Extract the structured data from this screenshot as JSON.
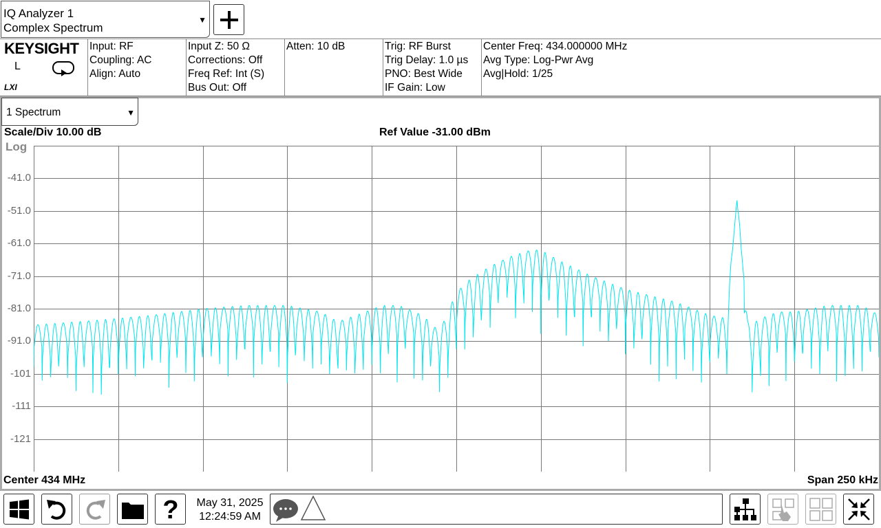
{
  "analyzer": {
    "line1": "IQ Analyzer 1",
    "line2": "Complex Spectrum"
  },
  "brand": {
    "logo": "KEYSIGHT",
    "mode": "L",
    "lxi": "LXI"
  },
  "info": {
    "col1": [
      "Input: RF",
      "Coupling: AC",
      "Align: Auto"
    ],
    "col2": [
      "Input Z: 50 Ω",
      "Corrections: Off",
      "Freq Ref: Int (S)",
      "Bus Out: Off"
    ],
    "col3": [
      "Atten: 10 dB"
    ],
    "col4": [
      "Trig: RF Burst",
      "Trig Delay: 1.0 µs",
      "PNO: Best Wide",
      "IF Gain: Low"
    ],
    "col5": [
      "Center Freq: 434.000000 MHz",
      "Avg Type: Log-Pwr Avg",
      "Avg|Hold: 1/25"
    ]
  },
  "window": {
    "selected": "1 Spectrum"
  },
  "plot": {
    "scale": "Scale/Div 10.00 dB",
    "ref": "Ref Value -31.00 dBm",
    "log": "Log",
    "center": "Center 434 MHz",
    "span": "Span 250 kHz"
  },
  "chart_data": {
    "type": "line",
    "y_tick_labels": [
      "-41.0",
      "-51.0",
      "-61.0",
      "-71.0",
      "-81.0",
      "-91.0",
      "-101",
      "-111",
      "-121"
    ],
    "ylim": [
      -131,
      -31
    ],
    "x_range_khz": [
      -125,
      125
    ],
    "grid": true,
    "trace_color": "#00e5ee",
    "envelope": {
      "x_khz": [
        -125,
        -112,
        -100,
        -90,
        -75,
        -62,
        -50,
        -40,
        -35,
        -27,
        -22,
        -17,
        -10,
        -5,
        0,
        4,
        10,
        16,
        22,
        25,
        30,
        40,
        50,
        65,
        75,
        80,
        83,
        85,
        87,
        90,
        95,
        100,
        110,
        120,
        125
      ],
      "peak_dbm": [
        -86,
        -85,
        -84,
        -83,
        -81,
        -80,
        -80,
        -82,
        -85,
        -82,
        -80,
        -80,
        -83,
        -88,
        -76,
        -72,
        -68,
        -65,
        -63,
        -63,
        -66,
        -71,
        -75,
        -79,
        -83,
        -84,
        -84,
        -84,
        -86,
        -84,
        -82,
        -82,
        -80,
        -80,
        -83
      ]
    },
    "main_peak": {
      "x_khz": 83,
      "level_dbm": -46
    }
  },
  "toolbar": {
    "date": "May 31, 2025",
    "time": "12:24:59 AM"
  },
  "colors": {
    "trace": "#00e5ee",
    "grid": "#777777",
    "frame": "#aaaaaa"
  }
}
